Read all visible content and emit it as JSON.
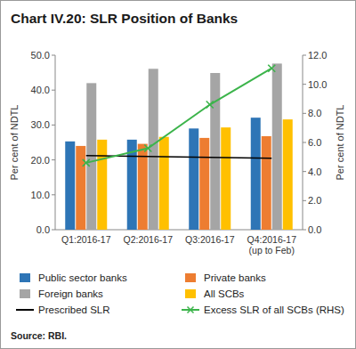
{
  "chart_data": {
    "type": "bar",
    "title": "Chart IV.20: SLR Position of Banks",
    "source": "Source: RBI.",
    "y_label": "Per cent of NDTL",
    "y2_label": "Per cent of NDTL",
    "categories": [
      "Q1:2016-17",
      "Q2:2016-17",
      "Q3:2016-17",
      "Q4:2016-17 (up to Feb)"
    ],
    "ylim": [
      0,
      50
    ],
    "yticks": [
      {
        "value": 0,
        "label": "0.0"
      },
      {
        "value": 10,
        "label": "10.0"
      },
      {
        "value": 20,
        "label": "20.0"
      },
      {
        "value": 30,
        "label": "30.0"
      },
      {
        "value": 40,
        "label": "40.0"
      },
      {
        "value": 50,
        "label": "50.0"
      }
    ],
    "y2lim": [
      0,
      12
    ],
    "y2ticks": [
      {
        "value": 0,
        "label": "0.0"
      },
      {
        "value": 2,
        "label": "2.0"
      },
      {
        "value": 4,
        "label": "4.0"
      },
      {
        "value": 6,
        "label": "6.0"
      },
      {
        "value": 8,
        "label": "8.0"
      },
      {
        "value": 10,
        "label": "10.0"
      },
      {
        "value": 12,
        "label": "12.0"
      }
    ],
    "grid": false,
    "legend": "bottom",
    "series": [
      {
        "name": "Public sector banks",
        "type": "bar",
        "color": "#2e75b6",
        "values": [
          25.3,
          25.8,
          29.0,
          32.1
        ]
      },
      {
        "name": "Private banks",
        "type": "bar",
        "color": "#ed7d31",
        "values": [
          24.0,
          24.6,
          26.3,
          26.8
        ]
      },
      {
        "name": "Foreign banks",
        "type": "bar",
        "color": "#a5a5a5",
        "values": [
          42.0,
          46.1,
          44.9,
          47.6
        ]
      },
      {
        "name": "All SCBs",
        "type": "bar",
        "color": "#ffc000",
        "values": [
          25.8,
          26.6,
          29.3,
          31.6
        ]
      },
      {
        "name": "Prescribed SLR",
        "type": "line",
        "color": "#000000",
        "line_style": "solid",
        "values": [
          21.25,
          21.0,
          20.75,
          20.5
        ]
      },
      {
        "name": "Excess SLR of all SCBs (RHS)",
        "type": "line",
        "axis": "y2",
        "color": "#3cb44b",
        "marker": "x",
        "line_style": "solid",
        "values": [
          4.6,
          5.6,
          8.6,
          11.1
        ]
      }
    ]
  }
}
